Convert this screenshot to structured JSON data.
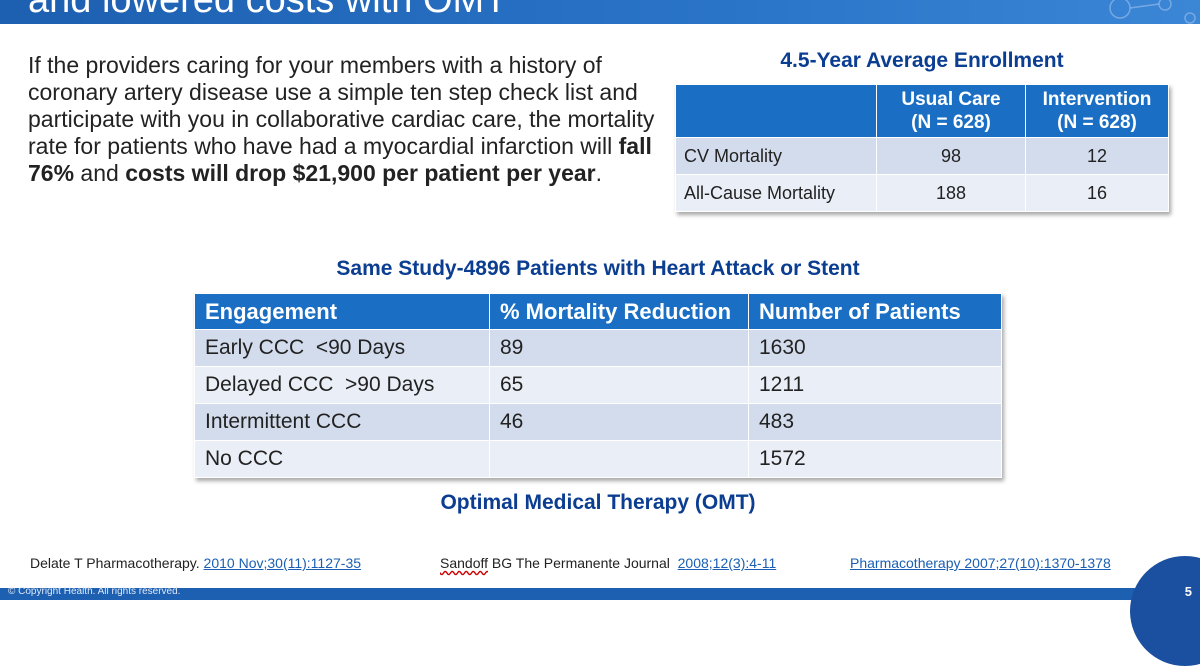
{
  "headline": "and lowered costs with OMT",
  "intro": {
    "part1": "If the providers caring for your members with a history of coronary artery disease use a simple ten step check list and participate with you in collaborative cardiac care, the mortality rate for patients who have had a myocardial infarction will ",
    "bold1": "fall 76%",
    "part2": " and ",
    "bold2": "costs will drop $21,900 per patient per year",
    "part3": "."
  },
  "enrollment": {
    "title": "4.5-Year Average Enrollment",
    "headers": [
      {
        "line1": "Usual Care",
        "line2": "(N = 628)"
      },
      {
        "line1": "Intervention",
        "line2": "(N = 628)"
      }
    ],
    "rows": [
      {
        "label": "CV Mortality",
        "usual": "98",
        "intervention": "12"
      },
      {
        "label": "All-Cause Mortality",
        "usual": "188",
        "intervention": "16"
      }
    ]
  },
  "study": {
    "title": "Same Study-4896 Patients with Heart Attack or Stent",
    "headers": [
      "Engagement",
      "% Mortality Reduction",
      "Number of Patients"
    ],
    "rows": [
      {
        "engagement": "Early CCC  <90 Days",
        "reduction": "89",
        "patients": "1630"
      },
      {
        "engagement": "Delayed CCC  >90 Days",
        "reduction": "65",
        "patients": "1211"
      },
      {
        "engagement": "Intermittent CCC",
        "reduction": "46",
        "patients": "483"
      },
      {
        "engagement": "No CCC",
        "reduction": "",
        "patients": "1572"
      }
    ],
    "caption": "Optimal Medical Therapy (OMT)"
  },
  "references": [
    {
      "author": "Delate T Pharmacotherapy. ",
      "link": "2010 Nov;30(11):1127-35"
    },
    {
      "author_squiggle": "Sandoff",
      "author": " BG The Permanente Journal  ",
      "link": "2008;12(3):4-11"
    },
    {
      "author": "",
      "link": "Pharmacotherapy 2007;27(10):1370-1378"
    }
  ],
  "footer": {
    "copyright": "© Copyright Health. All rights reserved.",
    "page_number": "5"
  },
  "colors": {
    "header_blue": "#1a6fc4",
    "title_blue": "#0b3d91",
    "row_dark": "#d3dced",
    "row_light": "#eaeef6"
  }
}
